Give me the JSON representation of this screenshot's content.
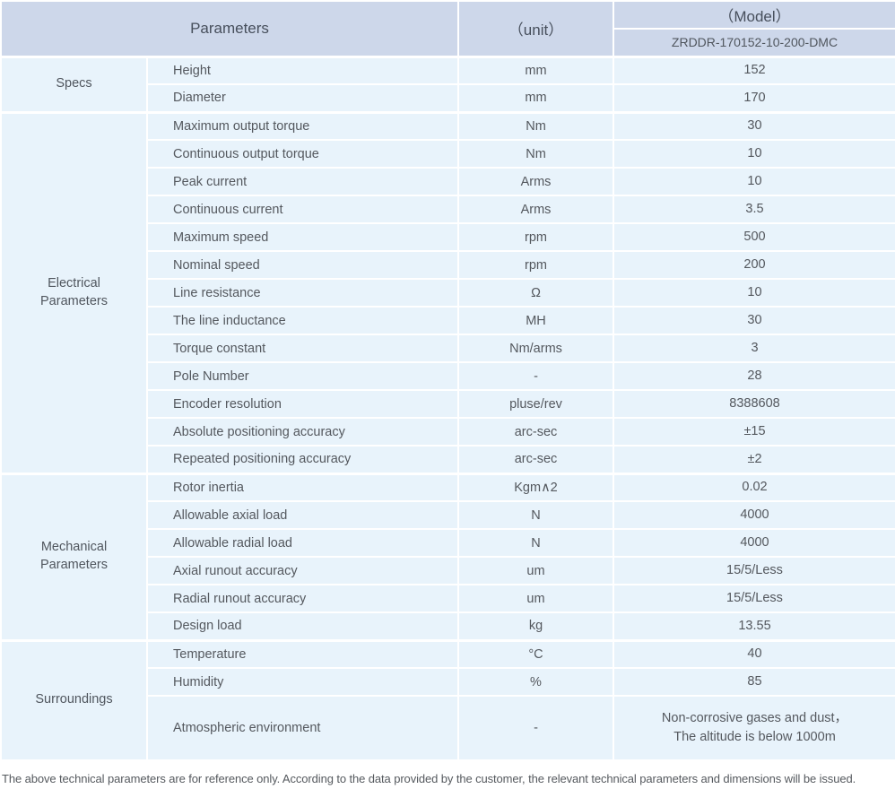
{
  "colors": {
    "header_bg": "#cdd7ea",
    "body_bg": "#e8f3fb",
    "grid_line": "#ffffff",
    "header_text": "#474f5c",
    "body_text": "#54585e"
  },
  "table": {
    "header": {
      "parameters": "Parameters",
      "unit": "（unit）",
      "model": "（Model）",
      "model_number": "ZRDDR-170152-10-200-DMC"
    },
    "sections": [
      {
        "group": "Specs",
        "rows": [
          {
            "param": "Height",
            "unit": "mm",
            "value": "152"
          },
          {
            "param": "Diameter",
            "unit": "mm",
            "value": "170"
          }
        ]
      },
      {
        "group": "Electrical\nParameters",
        "rows": [
          {
            "param": "Maximum output torque",
            "unit": "Nm",
            "value": "30"
          },
          {
            "param": "Continuous output torque",
            "unit": "Nm",
            "value": "10"
          },
          {
            "param": "Peak current",
            "unit": "Arms",
            "value": "10"
          },
          {
            "param": "Continuous current",
            "unit": "Arms",
            "value": "3.5"
          },
          {
            "param": "Maximum speed",
            "unit": "rpm",
            "value": "500"
          },
          {
            "param": "Nominal speed",
            "unit": "rpm",
            "value": "200"
          },
          {
            "param": "Line resistance",
            "unit": "Ω",
            "value": "10"
          },
          {
            "param": "The line inductance",
            "unit": "MH",
            "value": "30"
          },
          {
            "param": "Torque constant",
            "unit": "Nm/arms",
            "value": "3"
          },
          {
            "param": "Pole Number",
            "unit": "-",
            "value": "28"
          },
          {
            "param": "Encoder resolution",
            "unit": "pluse/rev",
            "value": "8388608"
          },
          {
            "param": "Absolute positioning accuracy",
            "unit": "arc-sec",
            "value": "±15"
          },
          {
            "param": "Repeated positioning accuracy",
            "unit": "arc-sec",
            "value": "±2"
          }
        ]
      },
      {
        "group": "Mechanical\nParameters",
        "rows": [
          {
            "param": "Rotor inertia",
            "unit": "Kgm∧2",
            "value": "0.02"
          },
          {
            "param": "Allowable axial load",
            "unit": "N",
            "value": "4000"
          },
          {
            "param": "Allowable radial load",
            "unit": "N",
            "value": "4000"
          },
          {
            "param": "Axial runout accuracy",
            "unit": "um",
            "value": "15/5/Less"
          },
          {
            "param": "Radial runout accuracy",
            "unit": "um",
            "value": "15/5/Less"
          },
          {
            "param": "Design load",
            "unit": "kg",
            "value": "13.55"
          }
        ]
      },
      {
        "group": "Surroundings",
        "rows": [
          {
            "param": "Temperature",
            "unit": "°C",
            "value": "40"
          },
          {
            "param": "Humidity",
            "unit": "%",
            "value": "85"
          },
          {
            "param": "Atmospheric environment",
            "unit": "-",
            "value": "Non-corrosive gases and dust，\nThe altitude is below 1000m"
          }
        ]
      }
    ]
  },
  "footnote": "The above technical parameters are for reference only. According to the data provided by the customer, the relevant technical parameters and dimensions will be issued."
}
